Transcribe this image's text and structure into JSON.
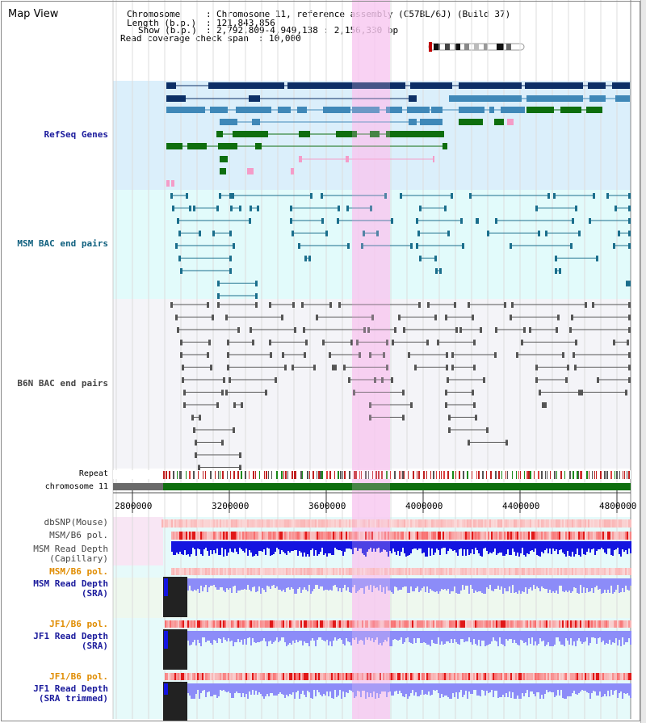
{
  "view_title": "Map View",
  "info": {
    "chromosome_label": "Chromosome",
    "chromosome_value": "Chromosome 11, reference assembly (C57BL/6J) (Build 37)",
    "length_label": "Length (b.p.)",
    "length_value": "121,843,856",
    "show_label": "Show (b.p.)",
    "show_value": "2,792,809-4,949,138 : 2,156,330 bp",
    "coverage_label": "Read coverage check span",
    "coverage_value": "10,000"
  },
  "tracks": {
    "refseq": "RefSeq Genes",
    "msm_bac": "MSM BAC end pairs",
    "b6n_bac": "B6N BAC end pairs",
    "repeat": "Repeat",
    "chromosome": "chromosome 11",
    "dbsnp": "dbSNP(Mouse)",
    "msm_b6_pol": "MSM/B6 pol.",
    "msm_depth_cap_1": "MSM Read Depth",
    "msm_depth_cap_2": "(Capillary)",
    "msm_b6_pol_2": "MSM/B6 pol.",
    "msm_depth_sra_1": "MSM Read Depth",
    "msm_depth_sra_2": "(SRA)",
    "jf1_b6_pol_1": "JF1/B6 pol.",
    "jf1_depth_sra_1": "JF1 Read Depth",
    "jf1_depth_sra_2": "(SRA)",
    "jf1_b6_pol_2": "JF1/B6 pol.",
    "jf1_depth_trim_1": "JF1 Read Depth",
    "jf1_depth_trim_2": "(SRA trimmed)"
  },
  "axis": {
    "ticks": [
      "2800000",
      "3200000",
      "3600000",
      "4000000",
      "4400000",
      "4800000"
    ],
    "tick_values": [
      2800000,
      3200000,
      3600000,
      4000000,
      4400000,
      4800000
    ]
  },
  "view_range": [
    2792809,
    4949138
  ],
  "highlight_range": [
    3800000,
    3960000
  ],
  "colors": {
    "refseq_bg": "#dbeffb",
    "msm_bg": "#e2fbfb",
    "b6n_bg": "#f4f4f8",
    "gene_dark": "#0c2f66",
    "gene_mid": "#3f88b8",
    "gene_green": "#0e6e0e",
    "gene_pink": "#f49cc8",
    "msm_pair": "#1a6e8c",
    "b6n_pair": "#555555",
    "highlight": "#f8c8f0",
    "depth_blue": "#1414e0",
    "depth_light": "#8c8cf8",
    "label_navy": "#1a1a9c",
    "label_teal": "#0e5f7e",
    "label_gray": "#444444",
    "label_orange": "#e08c00"
  }
}
